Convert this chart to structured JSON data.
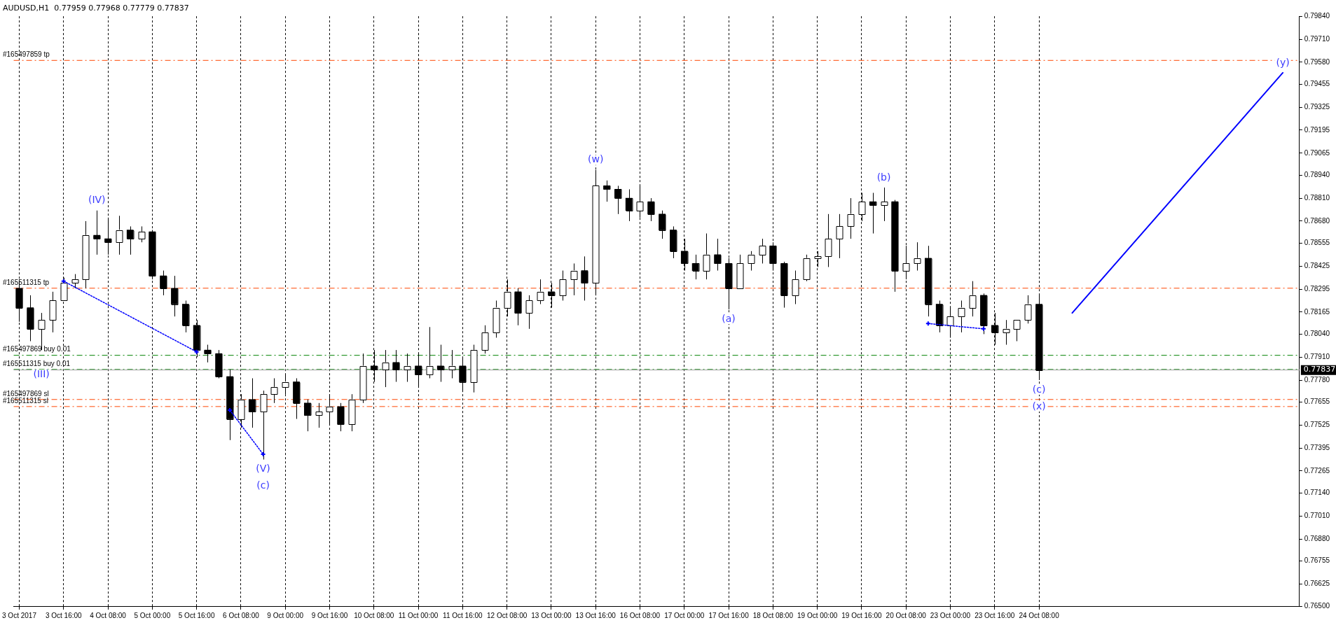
{
  "chart_data": {
    "type": "candlestick",
    "title": "AUDUSD,H1  0.77959 0.77968 0.77779 0.77837",
    "categories": [
      "3 Oct 2017",
      null,
      null,
      null,
      "3 Oct 16:00",
      null,
      null,
      null,
      "4 Oct 08:00",
      null,
      null,
      null,
      "5 Oct 00:00",
      null,
      null,
      null,
      "5 Oct 16:00",
      null,
      null,
      null,
      "6 Oct 08:00",
      null,
      null,
      null,
      "9 Oct 00:00",
      null,
      null,
      null,
      "9 Oct 16:00",
      null,
      null,
      null,
      "10 Oct 08:00",
      null,
      null,
      null,
      "11 Oct 00:00",
      null,
      null,
      null,
      "11 Oct 16:00",
      null,
      null,
      null,
      "12 Oct 08:00",
      null,
      null,
      null,
      "13 Oct 00:00",
      null,
      null,
      null,
      "13 Oct 16:00",
      null,
      null,
      null,
      "16 Oct 08:00",
      null,
      null,
      null,
      "17 Oct 00:00",
      null,
      null,
      null,
      "17 Oct 16:00",
      null,
      null,
      null,
      "18 Oct 08:00",
      null,
      null,
      null,
      "19 Oct 00:00",
      null,
      null,
      null,
      "19 Oct 16:00",
      null,
      null,
      null,
      "20 Oct 08:00",
      null,
      null,
      null,
      "23 Oct 00:00",
      null,
      null,
      null,
      "23 Oct 16:00",
      null,
      null,
      null,
      "24 Oct 08:00",
      null,
      null,
      null,
      null,
      null,
      null,
      null,
      null,
      null,
      null,
      null,
      null,
      null,
      null,
      null,
      null,
      null,
      null,
      null,
      null,
      null,
      null,
      null
    ],
    "ylim": [
      0.765,
      0.7984
    ],
    "yticks": [
      {
        "value": 0.765,
        "label": "0.76500"
      },
      {
        "value": 0.76625,
        "label": "0.76625"
      },
      {
        "value": 0.76755,
        "label": "0.76755"
      },
      {
        "value": 0.7688,
        "label": "0.76880"
      },
      {
        "value": 0.7701,
        "label": "0.77010"
      },
      {
        "value": 0.7714,
        "label": "0.77140"
      },
      {
        "value": 0.77265,
        "label": "0.77265"
      },
      {
        "value": 0.77395,
        "label": "0.77395"
      },
      {
        "value": 0.77525,
        "label": "0.77525"
      },
      {
        "value": 0.77655,
        "label": "0.77655"
      },
      {
        "value": 0.7778,
        "label": "0.77780"
      },
      {
        "value": 0.7791,
        "label": "0.77910"
      },
      {
        "value": 0.7804,
        "label": "0.78040"
      },
      {
        "value": 0.78165,
        "label": "0.78165"
      },
      {
        "value": 0.78295,
        "label": "0.78295"
      },
      {
        "value": 0.78425,
        "label": "0.78425"
      },
      {
        "value": 0.78555,
        "label": "0.78555"
      },
      {
        "value": 0.7868,
        "label": "0.78680"
      },
      {
        "value": 0.7881,
        "label": "0.78810"
      },
      {
        "value": 0.7894,
        "label": "0.78940"
      },
      {
        "value": 0.79065,
        "label": "0.79065"
      },
      {
        "value": 0.79195,
        "label": "0.79195"
      },
      {
        "value": 0.79325,
        "label": "0.79325"
      },
      {
        "value": 0.79455,
        "label": "0.79455"
      },
      {
        "value": 0.7958,
        "label": "0.79580"
      },
      {
        "value": 0.7971,
        "label": "0.79710"
      },
      {
        "value": 0.7984,
        "label": "0.79840"
      }
    ],
    "grid": "x",
    "legend": false,
    "series": [
      {
        "color": "#000000",
        "colors": [
          "#000000",
          "#000000",
          "#ffffff",
          "#ffffff",
          "#ffffff",
          "#ffffff",
          "#ffffff",
          "#000000",
          "#000000",
          "#ffffff",
          "#000000",
          "#ffffff",
          "#000000",
          "#000000",
          "#000000",
          "#000000",
          "#000000",
          "#000000",
          "#000000",
          "#000000",
          "#ffffff",
          "#000000",
          "#ffffff",
          "#ffffff",
          "#ffffff",
          "#000000",
          "#000000",
          "#ffffff",
          "#ffffff",
          "#000000",
          "#ffffff",
          "#ffffff",
          "#000000",
          "#ffffff",
          "#000000",
          "#ffffff",
          "#000000",
          "#ffffff",
          "#000000",
          "#ffffff",
          "#000000",
          "#ffffff",
          "#ffffff",
          "#ffffff",
          "#ffffff",
          "#000000",
          "#ffffff",
          "#ffffff",
          "#000000",
          "#ffffff",
          "#ffffff",
          "#000000",
          "#ffffff",
          "#000000",
          "#000000",
          "#000000",
          "#ffffff",
          "#000000",
          "#000000",
          "#000000",
          "#000000",
          "#000000",
          "#ffffff",
          "#000000",
          "#000000",
          "#ffffff",
          "#ffffff",
          "#ffffff",
          "#000000",
          "#000000",
          "#ffffff",
          "#ffffff",
          "#ffffff",
          "#ffffff",
          "#ffffff",
          "#ffffff",
          "#ffffff",
          "#000000",
          "#ffffff",
          "#000000",
          "#ffffff",
          "#ffffff",
          "#000000",
          "#000000",
          "#ffffff",
          "#ffffff",
          "#ffffff",
          "#000000",
          "#000000",
          "#ffffff",
          "#ffffff",
          "#ffffff",
          "#000000",
          null,
          null,
          null,
          null,
          null,
          null,
          null,
          null,
          null,
          null,
          null,
          null,
          null,
          null,
          null,
          null,
          null,
          null,
          null,
          null,
          null,
          null,
          null
        ],
        "ohlc": [
          [
            0.783,
            0.7834,
            0.7811,
            0.7819
          ],
          [
            0.7819,
            0.7826,
            0.78,
            0.7807
          ],
          [
            0.7807,
            0.7816,
            0.7795,
            0.7812
          ],
          [
            0.7812,
            0.7828,
            0.7805,
            0.7823
          ],
          [
            0.7823,
            0.7836,
            0.7823,
            0.7833
          ],
          [
            0.7833,
            0.7838,
            0.783,
            0.7835
          ],
          [
            0.7835,
            0.7868,
            0.783,
            0.786
          ],
          [
            0.786,
            0.7874,
            0.7849,
            0.7858
          ],
          [
            0.7858,
            0.787,
            0.7849,
            0.7856
          ],
          [
            0.7856,
            0.7871,
            0.7849,
            0.7863
          ],
          [
            0.7863,
            0.7865,
            0.7849,
            0.7858
          ],
          [
            0.7858,
            0.7865,
            0.7856,
            0.7862
          ],
          [
            0.7862,
            0.7863,
            0.7835,
            0.7837
          ],
          [
            0.7837,
            0.784,
            0.7826,
            0.783
          ],
          [
            0.783,
            0.7837,
            0.7814,
            0.7821
          ],
          [
            0.7821,
            0.7823,
            0.7805,
            0.7809
          ],
          [
            0.7809,
            0.7812,
            0.7791,
            0.7795
          ],
          [
            0.7795,
            0.7798,
            0.7788,
            0.7793
          ],
          [
            0.7793,
            0.7795,
            0.7779,
            0.778
          ],
          [
            0.778,
            0.7784,
            0.7744,
            0.7756
          ],
          [
            0.7756,
            0.777,
            0.7751,
            0.7767
          ],
          [
            0.7767,
            0.7779,
            0.7751,
            0.776
          ],
          [
            0.776,
            0.7772,
            0.7733,
            0.777
          ],
          [
            0.777,
            0.7779,
            0.7765,
            0.7774
          ],
          [
            0.7774,
            0.7781,
            0.777,
            0.7777
          ],
          [
            0.7777,
            0.7779,
            0.7756,
            0.7765
          ],
          [
            0.7765,
            0.7767,
            0.7749,
            0.7758
          ],
          [
            0.7758,
            0.7765,
            0.7751,
            0.776
          ],
          [
            0.776,
            0.777,
            0.7753,
            0.7763
          ],
          [
            0.7763,
            0.7765,
            0.7749,
            0.7753
          ],
          [
            0.7753,
            0.777,
            0.7749,
            0.7767
          ],
          [
            0.7767,
            0.7793,
            0.7765,
            0.7786
          ],
          [
            0.7786,
            0.7795,
            0.7777,
            0.7784
          ],
          [
            0.7784,
            0.7795,
            0.7774,
            0.7788
          ],
          [
            0.7788,
            0.7795,
            0.7777,
            0.7784
          ],
          [
            0.7784,
            0.7793,
            0.7777,
            0.7786
          ],
          [
            0.7786,
            0.7793,
            0.7774,
            0.7781
          ],
          [
            0.7781,
            0.7808,
            0.7779,
            0.7786
          ],
          [
            0.7786,
            0.7798,
            0.7777,
            0.7784
          ],
          [
            0.7784,
            0.7795,
            0.7779,
            0.7786
          ],
          [
            0.7786,
            0.7791,
            0.7772,
            0.7777
          ],
          [
            0.7777,
            0.7798,
            0.7771,
            0.7795
          ],
          [
            0.7795,
            0.7809,
            0.7793,
            0.7805
          ],
          [
            0.7805,
            0.7823,
            0.7802,
            0.7819
          ],
          [
            0.7819,
            0.7835,
            0.7814,
            0.7828
          ],
          [
            0.7828,
            0.783,
            0.7809,
            0.7816
          ],
          [
            0.7816,
            0.7826,
            0.7807,
            0.7823
          ],
          [
            0.7823,
            0.7835,
            0.7821,
            0.7828
          ],
          [
            0.7828,
            0.7833,
            0.7819,
            0.7826
          ],
          [
            0.7826,
            0.784,
            0.7823,
            0.7835
          ],
          [
            0.7835,
            0.7844,
            0.7826,
            0.784
          ],
          [
            0.784,
            0.7848,
            0.7823,
            0.7833
          ],
          [
            0.7833,
            0.7897,
            0.7826,
            0.7888
          ],
          [
            0.7888,
            0.7891,
            0.7879,
            0.7886
          ],
          [
            0.7886,
            0.7888,
            0.7872,
            0.7881
          ],
          [
            0.7881,
            0.7886,
            0.7868,
            0.7874
          ],
          [
            0.7874,
            0.7888,
            0.787,
            0.7879
          ],
          [
            0.7879,
            0.7881,
            0.7868,
            0.7872
          ],
          [
            0.7872,
            0.7874,
            0.7858,
            0.7863
          ],
          [
            0.7863,
            0.7865,
            0.7847,
            0.7851
          ],
          [
            0.7851,
            0.7858,
            0.784,
            0.7844
          ],
          [
            0.7844,
            0.7849,
            0.7835,
            0.784
          ],
          [
            0.784,
            0.7861,
            0.7835,
            0.7849
          ],
          [
            0.7849,
            0.7858,
            0.784,
            0.7844
          ],
          [
            0.7844,
            0.7847,
            0.7818,
            0.783
          ],
          [
            0.783,
            0.7849,
            0.783,
            0.7844
          ],
          [
            0.7844,
            0.7851,
            0.784,
            0.7849
          ],
          [
            0.7849,
            0.7858,
            0.7844,
            0.7854
          ],
          [
            0.7854,
            0.7856,
            0.784,
            0.7844
          ],
          [
            0.7844,
            0.7845,
            0.7819,
            0.7826
          ],
          [
            0.7826,
            0.784,
            0.7821,
            0.7835
          ],
          [
            0.7835,
            0.7849,
            0.7834,
            0.7847
          ],
          [
            0.7847,
            0.7851,
            0.7842,
            0.7848
          ],
          [
            0.7848,
            0.7872,
            0.7842,
            0.7858
          ],
          [
            0.7858,
            0.7872,
            0.7847,
            0.7865
          ],
          [
            0.7865,
            0.7881,
            0.7858,
            0.7872
          ],
          [
            0.7872,
            0.7884,
            0.7868,
            0.7879
          ],
          [
            0.7879,
            0.7884,
            0.7861,
            0.7877
          ],
          [
            0.7877,
            0.7887,
            0.7868,
            0.7879
          ],
          [
            0.7879,
            0.788,
            0.7828,
            0.784
          ],
          [
            0.784,
            0.7854,
            0.7835,
            0.7844
          ],
          [
            0.7844,
            0.7856,
            0.784,
            0.7847
          ],
          [
            0.7847,
            0.7854,
            0.7814,
            0.7821
          ],
          [
            0.7821,
            0.7823,
            0.7805,
            0.7809
          ],
          [
            0.7809,
            0.7819,
            0.7802,
            0.7814
          ],
          [
            0.7814,
            0.7823,
            0.7805,
            0.7819
          ],
          [
            0.7819,
            0.7834,
            0.7814,
            0.7826
          ],
          [
            0.7826,
            0.7827,
            0.7804,
            0.7809
          ],
          [
            0.7809,
            0.7816,
            0.7798,
            0.7805
          ],
          [
            0.7805,
            0.7812,
            0.7798,
            0.7807
          ],
          [
            0.7807,
            0.7812,
            0.78,
            0.7812
          ],
          [
            0.7812,
            0.7826,
            0.781,
            0.7821
          ],
          [
            0.7821,
            0.7826,
            0.7778,
            0.77837
          ],
          null,
          null,
          null,
          null,
          null,
          null,
          null,
          null,
          null,
          null,
          null,
          null,
          null,
          null,
          null,
          null,
          null,
          null,
          null,
          null,
          null,
          null,
          null
        ]
      },
      {
        "type": "line",
        "color": "#0000ff",
        "line_style": "solid",
        "values": [
          null,
          null,
          null,
          null,
          null,
          null,
          null,
          null,
          null,
          null,
          null,
          null,
          null,
          null,
          null,
          null,
          null,
          null,
          null,
          null,
          null,
          null,
          null,
          null,
          null,
          null,
          null,
          null,
          null,
          null,
          null,
          null,
          null,
          null,
          null,
          null,
          null,
          null,
          null,
          null,
          null,
          null,
          null,
          null,
          null,
          null,
          null,
          null,
          null,
          null,
          null,
          null,
          null,
          null,
          null,
          null,
          null,
          null,
          null,
          null,
          null,
          null,
          null,
          null,
          null,
          null,
          null,
          null,
          null,
          null,
          null,
          null,
          null,
          null,
          null,
          null,
          null,
          null,
          null,
          null,
          null,
          null,
          null,
          null,
          null,
          null,
          null,
          null,
          null,
          null,
          null,
          null,
          null,
          null,
          null,
          0.7816,
          null,
          null,
          null,
          null,
          null,
          null,
          null,
          null,
          null,
          null,
          null,
          null,
          null,
          null,
          null,
          null,
          null,
          null,
          0.7952,
          null
        ]
      },
      {
        "type": "line",
        "color": "#0000ff",
        "line_style": "dotted",
        "marker": "cross",
        "values": [
          null,
          null,
          null,
          null,
          0.7834,
          null,
          null,
          null,
          null,
          null,
          null,
          null,
          null,
          null,
          null,
          null,
          0.7794,
          null,
          null,
          null,
          null,
          null,
          null,
          null,
          null,
          null,
          null,
          null,
          null,
          null,
          null,
          null,
          null,
          null,
          null,
          null,
          null,
          null,
          null,
          null,
          null,
          null,
          null,
          null,
          null,
          null,
          null,
          null,
          null,
          null,
          null,
          null,
          null,
          null,
          null,
          null,
          null,
          null,
          null,
          null,
          null,
          null,
          null,
          null,
          null,
          null,
          null,
          null,
          null,
          null,
          null,
          null,
          null,
          null,
          null,
          null,
          null,
          null,
          null,
          null,
          null,
          null,
          null,
          null,
          null,
          null,
          null,
          null,
          null,
          null,
          null,
          null,
          null,
          null,
          null,
          null,
          null,
          null,
          null,
          null,
          null,
          null,
          null,
          null,
          null,
          null,
          null,
          null,
          null,
          null,
          null,
          null,
          null,
          null,
          null,
          null
        ]
      },
      {
        "type": "line",
        "color": "#0000ff",
        "line_style": "dotted",
        "marker": "cross",
        "values": [
          null,
          null,
          null,
          null,
          null,
          null,
          null,
          null,
          null,
          null,
          null,
          null,
          null,
          null,
          null,
          null,
          null,
          null,
          null,
          0.7761,
          null,
          null,
          0.7736,
          null,
          null,
          null,
          null,
          null,
          null,
          null,
          null,
          null,
          null,
          null,
          null,
          null,
          null,
          null,
          null,
          null,
          null,
          null,
          null,
          null,
          null,
          null,
          null,
          null,
          null,
          null,
          null,
          null,
          null,
          null,
          null,
          null,
          null,
          null,
          null,
          null,
          null,
          null,
          null,
          null,
          null,
          null,
          null,
          null,
          null,
          null,
          null,
          null,
          null,
          null,
          null,
          null,
          null,
          null,
          null,
          null,
          null,
          null,
          null,
          null,
          null,
          null,
          null,
          null,
          null,
          null,
          null,
          null,
          null,
          null,
          null,
          null,
          null,
          null,
          null,
          null,
          null,
          null,
          null,
          null,
          null,
          null,
          null,
          null,
          null,
          null,
          null,
          null,
          null,
          null,
          null,
          null
        ]
      },
      {
        "type": "line",
        "color": "#0000ff",
        "line_style": "dotted",
        "marker": "cross",
        "values": [
          null,
          null,
          null,
          null,
          null,
          null,
          null,
          null,
          null,
          null,
          null,
          null,
          null,
          null,
          null,
          null,
          null,
          null,
          null,
          null,
          null,
          null,
          null,
          null,
          null,
          null,
          null,
          null,
          null,
          null,
          null,
          null,
          null,
          null,
          null,
          null,
          null,
          null,
          null,
          null,
          null,
          null,
          null,
          null,
          null,
          null,
          null,
          null,
          null,
          null,
          null,
          null,
          null,
          null,
          null,
          null,
          null,
          null,
          null,
          null,
          null,
          null,
          null,
          null,
          null,
          null,
          null,
          null,
          null,
          null,
          null,
          null,
          null,
          null,
          null,
          null,
          null,
          null,
          null,
          null,
          null,
          null,
          0.781,
          null,
          null,
          null,
          null,
          0.7807,
          null,
          null,
          null,
          null,
          null,
          null,
          null,
          null,
          null,
          null,
          null,
          null,
          null,
          null,
          null,
          null,
          null,
          null,
          null,
          null,
          null,
          null,
          null,
          null,
          null,
          null,
          null,
          null
        ]
      }
    ],
    "ref_lines": [
      {
        "axis": "y",
        "value": 0.7959,
        "label": "#165497859 tp",
        "color": "#ff4500",
        "line_style": "dashed"
      },
      {
        "axis": "y",
        "value": 0.783,
        "label": "#165511315 tp",
        "color": "#ff4500",
        "line_style": "dashed"
      },
      {
        "axis": "y",
        "value": 0.7792,
        "label": "#165497869 buy 0.01",
        "color": "#008000",
        "line_style": "dashed"
      },
      {
        "axis": "y",
        "value": 0.7784,
        "label": "#165511315 buy 0.01",
        "color": "#008000",
        "line_style": "dashed"
      },
      {
        "axis": "y",
        "value": 0.77837,
        "label": "0.77837",
        "color": "#a0a0a0",
        "line_style": "solid"
      },
      {
        "axis": "y",
        "value": 0.7767,
        "label": "#165497869 sl",
        "color": "#ff4500",
        "line_style": "dashed"
      },
      {
        "axis": "y",
        "value": 0.7763,
        "label": "#165511315 sl",
        "color": "#ff4500",
        "line_style": "dashed"
      }
    ],
    "annotations": [
      {
        "text": "(III)",
        "y": 0.7795
      },
      {
        "text": "(IV)",
        "y": 0.7874
      },
      {
        "text": "(V)",
        "y": 0.7733
      },
      {
        "text": "(c)",
        "y": 0.7733
      },
      {
        "text": "(w)",
        "y": 0.7897
      },
      {
        "text": "(a)",
        "y": 0.7818
      },
      {
        "text": "(b)",
        "y": 0.7887
      },
      {
        "text": "(c)",
        "y": 0.7778
      },
      {
        "text": "(x)",
        "y": 0.7778
      },
      {
        "text": "(y)",
        "y": 0.7952
      }
    ]
  }
}
